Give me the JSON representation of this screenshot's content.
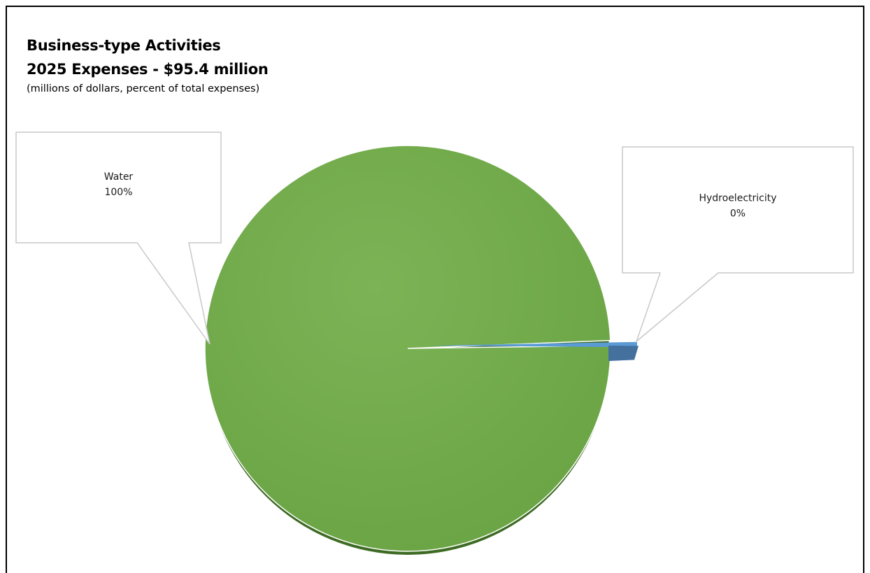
{
  "chart_data": {
    "type": "pie",
    "title": "Business-type Activities",
    "subtitle": "2025 Expenses - $95.4 million",
    "note": "(millions of dollars, percent of total expenses)",
    "slices": [
      {
        "label": "Water",
        "percent_label": "100%",
        "value": 99.6,
        "color": "#70ad47"
      },
      {
        "label": "Hydroelectricity",
        "percent_label": "0%",
        "value": 0.4,
        "color": "#4472c4"
      }
    ]
  }
}
